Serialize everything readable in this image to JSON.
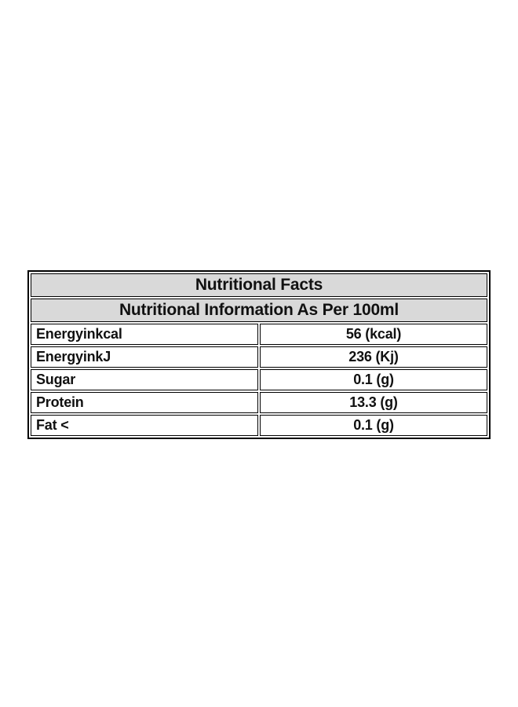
{
  "table": {
    "title": "Nutritional Facts",
    "subtitle": "Nutritional Information As Per 100ml",
    "rows": [
      {
        "label": "Energyinkcal",
        "value": "56 (kcal)"
      },
      {
        "label": "EnergyinkJ",
        "value": "236 (Kj)"
      },
      {
        "label": "Sugar",
        "value": "0.1 (g)"
      },
      {
        "label": "Protein",
        "value": "13.3 (g)"
      },
      {
        "label": "Fat <",
        "value": "0.1 (g)"
      }
    ],
    "colors": {
      "page_bg": "#ffffff",
      "header_bg": "#d9d9d9",
      "border": "#000000",
      "text": "#111111"
    }
  }
}
